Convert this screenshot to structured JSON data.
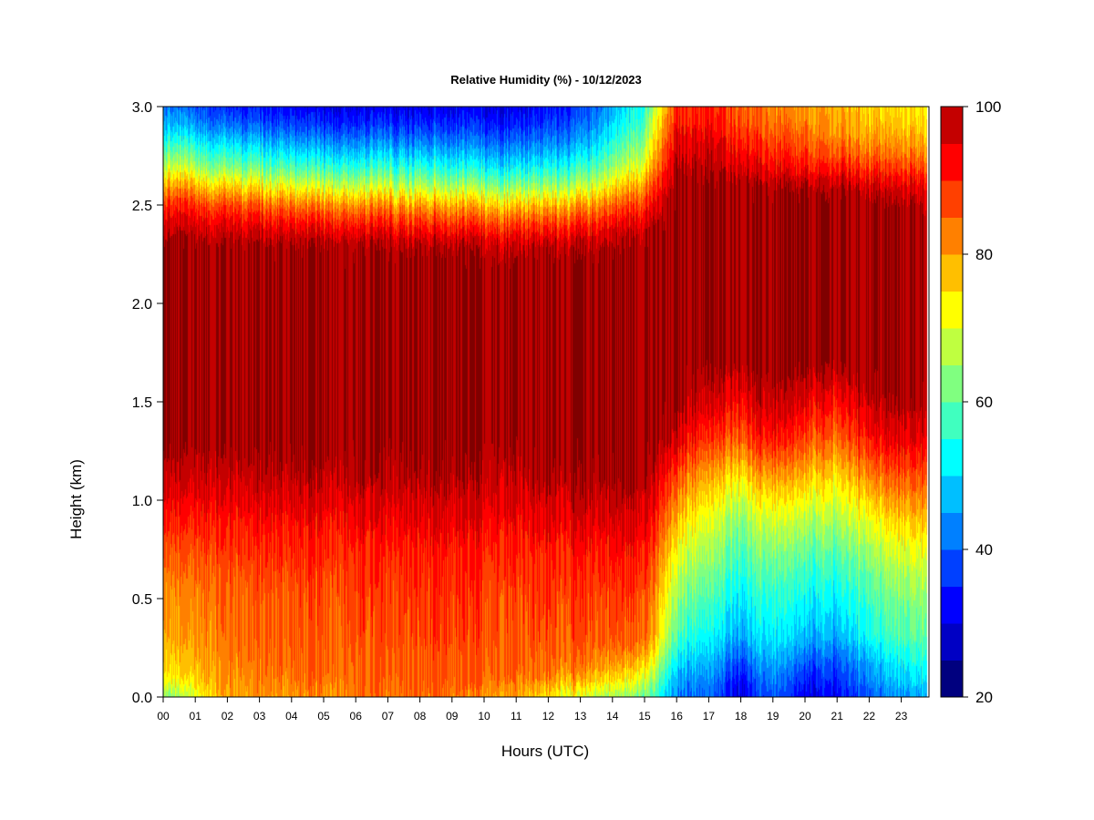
{
  "chart_data": {
    "type": "heatmap",
    "title": "Relative Humidity (%) - 10/12/2023",
    "xlabel": "Hours (UTC)",
    "ylabel": "Height (km)",
    "x_ticks": [
      "00",
      "01",
      "02",
      "03",
      "04",
      "05",
      "06",
      "07",
      "08",
      "09",
      "10",
      "11",
      "12",
      "13",
      "14",
      "15",
      "16",
      "17",
      "18",
      "19",
      "20",
      "21",
      "22",
      "23"
    ],
    "xlim": [
      0,
      24
    ],
    "y_ticks": [
      "0.0",
      "0.5",
      "1.0",
      "1.5",
      "2.0",
      "2.5",
      "3.0"
    ],
    "ylim": [
      0,
      3.0
    ],
    "colorbar": {
      "range": [
        20,
        100
      ],
      "step": 5,
      "tick_labels": [
        "20",
        "40",
        "60",
        "80",
        "100"
      ],
      "colors": [
        "#00007f",
        "#0000c4",
        "#0000ff",
        "#0040ff",
        "#0080ff",
        "#00bfff",
        "#00ffff",
        "#40ffbf",
        "#80ff80",
        "#bfff40",
        "#ffff00",
        "#ffbf00",
        "#ff8000",
        "#ff4000",
        "#ff0000",
        "#c40000",
        "#7f0000"
      ]
    },
    "profiles": {
      "heights_km": [
        0.0,
        0.1,
        0.2,
        0.3,
        0.5,
        0.7,
        0.9,
        1.1,
        1.3,
        1.5,
        1.7,
        2.0,
        2.2,
        2.3,
        2.4,
        2.5,
        2.6,
        2.7,
        2.8,
        2.9,
        3.0
      ],
      "series": [
        {
          "hour": 0,
          "rh": [
            60,
            72,
            75,
            78,
            80,
            84,
            90,
            96,
            100,
            100,
            100,
            100,
            100,
            100,
            96,
            90,
            80,
            68,
            58,
            48,
            42
          ]
        },
        {
          "hour": 2,
          "rh": [
            80,
            82,
            83,
            84,
            85,
            88,
            92,
            97,
            100,
            100,
            100,
            100,
            100,
            100,
            95,
            88,
            76,
            62,
            52,
            42,
            35
          ]
        },
        {
          "hour": 5,
          "rh": [
            82,
            84,
            85,
            86,
            87,
            89,
            93,
            98,
            100,
            100,
            100,
            100,
            100,
            99,
            92,
            82,
            68,
            55,
            45,
            36,
            30
          ]
        },
        {
          "hour": 8,
          "rh": [
            84,
            86,
            86,
            87,
            88,
            90,
            94,
            98,
            100,
            100,
            100,
            100,
            100,
            98,
            90,
            80,
            66,
            54,
            44,
            36,
            30
          ]
        },
        {
          "hour": 11,
          "rh": [
            80,
            85,
            86,
            87,
            88,
            90,
            94,
            98,
            100,
            100,
            100,
            100,
            100,
            97,
            88,
            76,
            62,
            50,
            42,
            35,
            30
          ]
        },
        {
          "hour": 13,
          "rh": [
            68,
            80,
            84,
            86,
            88,
            90,
            95,
            99,
            100,
            100,
            100,
            100,
            100,
            98,
            90,
            80,
            66,
            55,
            46,
            40,
            36
          ]
        },
        {
          "hour": 15,
          "rh": [
            62,
            72,
            80,
            86,
            88,
            92,
            96,
            100,
            100,
            100,
            100,
            100,
            100,
            100,
            97,
            90,
            82,
            72,
            66,
            60,
            56
          ]
        },
        {
          "hour": 16,
          "rh": [
            42,
            46,
            52,
            58,
            64,
            70,
            78,
            86,
            96,
            100,
            100,
            100,
            100,
            100,
            100,
            100,
            100,
            98,
            96,
            92,
            90
          ]
        },
        {
          "hour": 17,
          "rh": [
            40,
            44,
            48,
            52,
            58,
            64,
            70,
            78,
            88,
            96,
            100,
            100,
            100,
            100,
            100,
            100,
            100,
            98,
            96,
            92,
            90
          ]
        },
        {
          "hour": 18,
          "rh": [
            30,
            34,
            40,
            46,
            52,
            58,
            64,
            74,
            86,
            94,
            100,
            100,
            100,
            100,
            100,
            100,
            100,
            96,
            92,
            88,
            86
          ]
        },
        {
          "hour": 19,
          "rh": [
            40,
            44,
            48,
            52,
            56,
            62,
            70,
            80,
            92,
            98,
            100,
            100,
            100,
            100,
            100,
            100,
            98,
            92,
            88,
            84,
            82
          ]
        },
        {
          "hour": 20,
          "rh": [
            30,
            34,
            40,
            46,
            52,
            58,
            66,
            76,
            86,
            94,
            100,
            100,
            100,
            100,
            100,
            100,
            98,
            90,
            86,
            82,
            80
          ]
        },
        {
          "hour": 21,
          "rh": [
            32,
            36,
            40,
            46,
            52,
            58,
            66,
            74,
            84,
            92,
            100,
            100,
            100,
            100,
            100,
            100,
            98,
            90,
            84,
            80,
            78
          ]
        },
        {
          "hour": 22,
          "rh": [
            40,
            44,
            48,
            54,
            58,
            64,
            72,
            82,
            92,
            98,
            100,
            100,
            100,
            100,
            100,
            100,
            96,
            88,
            82,
            78,
            76
          ]
        },
        {
          "hour": 24,
          "rh": [
            48,
            54,
            58,
            62,
            66,
            72,
            80,
            88,
            96,
            100,
            100,
            100,
            100,
            100,
            100,
            98,
            94,
            86,
            80,
            76,
            74
          ]
        }
      ]
    }
  }
}
